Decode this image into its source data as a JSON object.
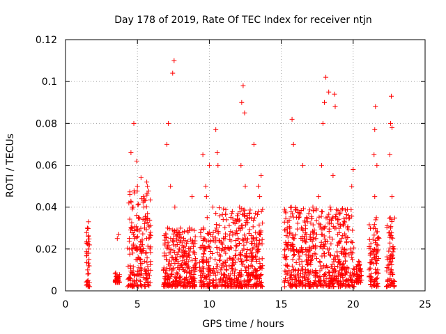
{
  "chart_data": {
    "type": "scatter",
    "title": "Day 178 of 2019, Rate Of TEC Index for receiver ntjn",
    "xlabel": "GPS time / hours",
    "ylabel": "ROTI / TECUs",
    "xlim": [
      0,
      25
    ],
    "ylim": [
      0,
      0.12
    ],
    "xticks": [
      0,
      5,
      10,
      15,
      20,
      25
    ],
    "xtick_labels": [
      "0",
      "5",
      "10",
      "15",
      "20",
      "25"
    ],
    "yticks": [
      0,
      0.02,
      0.04,
      0.06,
      0.08,
      0.1,
      0.12
    ],
    "ytick_labels": [
      "0",
      "0.02",
      "0.04",
      "0.06",
      "0.08",
      "0.1",
      "0.12"
    ],
    "grid": true,
    "marker": "+",
    "color": "#ff0000",
    "series": [
      {
        "name": "ROTI",
        "x": [
          1.5,
          1.55,
          1.6,
          1.62,
          1.65,
          1.58,
          1.52,
          1.6,
          1.63,
          1.57,
          1.61,
          1.54,
          3.5,
          3.55,
          3.6,
          3.7,
          4.4,
          4.5,
          4.6,
          4.65,
          4.7,
          4.8,
          4.9,
          5.0,
          5.1,
          5.2,
          5.3,
          5.4,
          5.5,
          5.6,
          5.7,
          5.8,
          4.55,
          4.75,
          4.95,
          5.25,
          5.45,
          5.65,
          6.9,
          7.0,
          7.1,
          7.2,
          7.3,
          7.4,
          7.5,
          7.6,
          7.7,
          7.8,
          7.9,
          8.0,
          8.2,
          8.4,
          8.6,
          8.8,
          9.0,
          7.45,
          7.55,
          7.05,
          7.15,
          9.4,
          9.5,
          9.6,
          9.7,
          9.8,
          9.9,
          10.0,
          9.55,
          9.75,
          9.85,
          10.3,
          10.4,
          10.5,
          10.6,
          10.7,
          10.8,
          11.0,
          11.2,
          11.4,
          11.6,
          11.8,
          12.0,
          12.1,
          12.2,
          12.3,
          12.4,
          12.5,
          12.6,
          12.8,
          13.0,
          13.2,
          13.4,
          13.6,
          10.45,
          10.55,
          12.25,
          12.35,
          12.45,
          13.1,
          13.5,
          15.3,
          15.4,
          15.5,
          15.6,
          15.7,
          15.8,
          15.9,
          16.0,
          16.2,
          16.4,
          16.6,
          16.8,
          17.0,
          17.2,
          17.4,
          17.6,
          17.8,
          18.0,
          18.2,
          18.4,
          18.6,
          18.8,
          19.0,
          19.2,
          19.4,
          19.6,
          19.8,
          20.0,
          15.75,
          15.85,
          16.5,
          17.9,
          18.0,
          18.1,
          18.3,
          18.7,
          18.75,
          19.9,
          20.3,
          20.5,
          21.2,
          21.3,
          21.4,
          21.5,
          21.6,
          21.7,
          21.45,
          21.5,
          21.55,
          21.65,
          22.4,
          22.5,
          22.6,
          22.7,
          22.8,
          22.55,
          22.6,
          22.65,
          22.7
        ],
        "y": [
          0.003,
          0.008,
          0.012,
          0.018,
          0.022,
          0.026,
          0.03,
          0.033,
          0.015,
          0.005,
          0.02,
          0.01,
          0.005,
          0.007,
          0.025,
          0.027,
          0.006,
          0.012,
          0.02,
          0.03,
          0.04,
          0.025,
          0.015,
          0.05,
          0.035,
          0.02,
          0.008,
          0.045,
          0.03,
          0.018,
          0.05,
          0.025,
          0.066,
          0.08,
          0.062,
          0.054,
          0.04,
          0.052,
          0.006,
          0.015,
          0.03,
          0.02,
          0.05,
          0.01,
          0.025,
          0.04,
          0.015,
          0.008,
          0.02,
          0.012,
          0.01,
          0.015,
          0.03,
          0.045,
          0.01,
          0.104,
          0.11,
          0.07,
          0.08,
          0.005,
          0.015,
          0.03,
          0.02,
          0.045,
          0.01,
          0.06,
          0.065,
          0.05,
          0.035,
          0.005,
          0.015,
          0.03,
          0.06,
          0.02,
          0.01,
          0.008,
          0.012,
          0.02,
          0.015,
          0.01,
          0.025,
          0.04,
          0.06,
          0.03,
          0.02,
          0.05,
          0.015,
          0.035,
          0.02,
          0.01,
          0.05,
          0.055,
          0.077,
          0.066,
          0.09,
          0.098,
          0.085,
          0.07,
          0.045,
          0.005,
          0.012,
          0.02,
          0.03,
          0.04,
          0.015,
          0.025,
          0.01,
          0.035,
          0.02,
          0.008,
          0.015,
          0.02,
          0.04,
          0.025,
          0.045,
          0.06,
          0.03,
          0.02,
          0.04,
          0.055,
          0.03,
          0.015,
          0.025,
          0.01,
          0.03,
          0.02,
          0.058,
          0.082,
          0.07,
          0.06,
          0.08,
          0.09,
          0.102,
          0.095,
          0.094,
          0.088,
          0.05,
          0.005,
          0.01,
          0.005,
          0.015,
          0.03,
          0.045,
          0.02,
          0.01,
          0.065,
          0.077,
          0.088,
          0.06,
          0.005,
          0.015,
          0.03,
          0.045,
          0.02,
          0.065,
          0.08,
          0.093,
          0.078
        ]
      }
    ],
    "density_bands": [
      [
        1.45,
        1.7,
        0.002,
        0.032
      ],
      [
        3.45,
        3.75,
        0.004,
        0.009
      ],
      [
        4.3,
        5.95,
        0.002,
        0.048
      ],
      [
        6.8,
        9.1,
        0.002,
        0.03
      ],
      [
        9.3,
        10.1,
        0.002,
        0.03
      ],
      [
        10.2,
        13.7,
        0.002,
        0.04
      ],
      [
        15.2,
        20.1,
        0.002,
        0.04
      ],
      [
        20.2,
        20.6,
        0.004,
        0.015
      ],
      [
        21.1,
        21.8,
        0.002,
        0.035
      ],
      [
        22.3,
        22.9,
        0.002,
        0.035
      ]
    ]
  }
}
